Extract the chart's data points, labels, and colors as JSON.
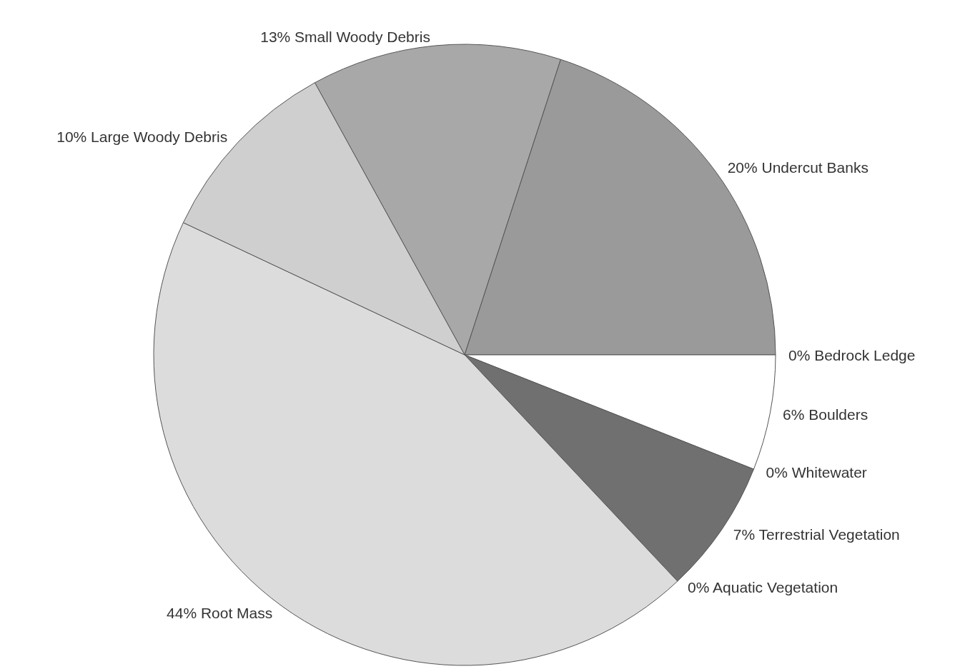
{
  "chart_data": {
    "type": "pie",
    "categories": [
      "Small Woody Debris",
      "Undercut Banks",
      "Bedrock Ledge",
      "Boulders",
      "Whitewater",
      "Terrestrial Vegetation",
      "Aquatic Vegetation",
      "Root Mass",
      "Large Woody Debris"
    ],
    "values": [
      13,
      20,
      0,
      6,
      0,
      7,
      0,
      44,
      10
    ],
    "colors": [
      "#a8a8a8",
      "#9a9a9a",
      "#ffffff",
      "#ffffff",
      "#ffffff",
      "#707070",
      "#ffffff",
      "#dcdcdc",
      "#cfcfcf"
    ],
    "value_labels": [
      "13%",
      "20%",
      "0%",
      "6%",
      "0%",
      "7%",
      "0%",
      "44%",
      "10%"
    ],
    "legend": false
  }
}
